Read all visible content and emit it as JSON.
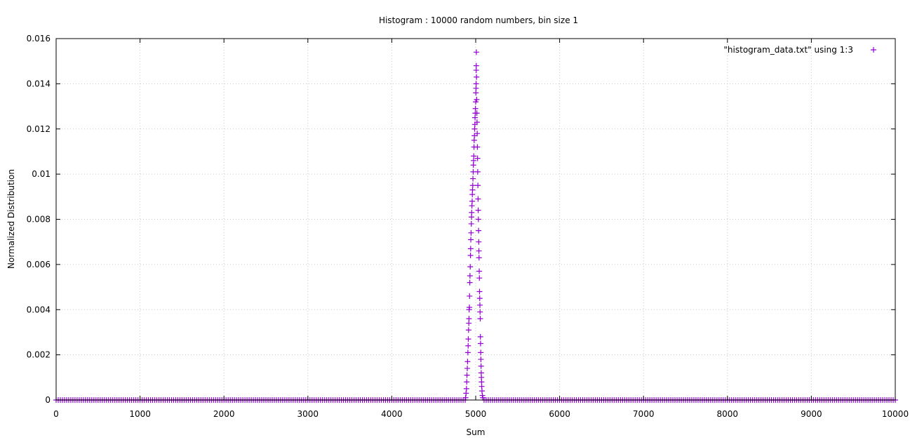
{
  "chart_data": {
    "type": "scatter",
    "title": "Histogram : 10000 random numbers, bin size 1",
    "xlabel": "Sum",
    "ylabel": "Normalized Distribution",
    "xlim": [
      0,
      10000
    ],
    "ylim": [
      0,
      0.016
    ],
    "x_ticks": [
      "0",
      "1000",
      "2000",
      "3000",
      "4000",
      "5000",
      "6000",
      "7000",
      "8000",
      "9000",
      "10000"
    ],
    "y_ticks": [
      "0",
      "0.002",
      "0.004",
      "0.006",
      "0.008",
      "0.01",
      "0.012",
      "0.014",
      "0.016"
    ],
    "grid": true,
    "legend_position": "top-right",
    "marker": "plus",
    "series": [
      {
        "name": "\"histogram_data.txt\" using 1:3",
        "color": "#9400d3",
        "baseline": {
          "x_range": [
            0,
            10000
          ],
          "step": 25,
          "y": 0
        },
        "points": [
          [
            4880,
            0.0001
          ],
          [
            4885,
            0.0003
          ],
          [
            4890,
            0.0005
          ],
          [
            4893,
            0.0008
          ],
          [
            4896,
            0.0011
          ],
          [
            4900,
            0.0014
          ],
          [
            4903,
            0.0017
          ],
          [
            4907,
            0.0021
          ],
          [
            4910,
            0.0024
          ],
          [
            4912,
            0.0027
          ],
          [
            4915,
            0.0031
          ],
          [
            4918,
            0.0034
          ],
          [
            4920,
            0.0036
          ],
          [
            4922,
            0.004
          ],
          [
            4925,
            0.0041
          ],
          [
            4927,
            0.0046
          ],
          [
            4930,
            0.0052
          ],
          [
            4932,
            0.0055
          ],
          [
            4935,
            0.0059
          ],
          [
            4938,
            0.0064
          ],
          [
            4940,
            0.0067
          ],
          [
            4942,
            0.0071
          ],
          [
            4945,
            0.0074
          ],
          [
            4948,
            0.0078
          ],
          [
            4950,
            0.0081
          ],
          [
            4952,
            0.0083
          ],
          [
            4955,
            0.0086
          ],
          [
            4958,
            0.0088
          ],
          [
            4960,
            0.0091
          ],
          [
            4962,
            0.0093
          ],
          [
            4965,
            0.0095
          ],
          [
            4967,
            0.0098
          ],
          [
            4970,
            0.0101
          ],
          [
            4972,
            0.0104
          ],
          [
            4975,
            0.0106
          ],
          [
            4977,
            0.0108
          ],
          [
            4980,
            0.0112
          ],
          [
            4982,
            0.0115
          ],
          [
            4985,
            0.0117
          ],
          [
            4987,
            0.012
          ],
          [
            4990,
            0.0122
          ],
          [
            4992,
            0.0125
          ],
          [
            4995,
            0.0127
          ],
          [
            4997,
            0.0129
          ],
          [
            5000,
            0.0132
          ],
          [
            5002,
            0.0136
          ],
          [
            5004,
            0.0138
          ],
          [
            5005,
            0.014
          ],
          [
            5006,
            0.0146
          ],
          [
            5007,
            0.0148
          ],
          [
            5008,
            0.0154
          ],
          [
            5010,
            0.0143
          ],
          [
            5012,
            0.0133
          ],
          [
            5014,
            0.0127
          ],
          [
            5016,
            0.0123
          ],
          [
            5018,
            0.0118
          ],
          [
            5020,
            0.0112
          ],
          [
            5022,
            0.0107
          ],
          [
            5024,
            0.0101
          ],
          [
            5026,
            0.0095
          ],
          [
            5028,
            0.0089
          ],
          [
            5030,
            0.0084
          ],
          [
            5032,
            0.008
          ],
          [
            5034,
            0.0075
          ],
          [
            5036,
            0.007
          ],
          [
            5038,
            0.0066
          ],
          [
            5040,
            0.0063
          ],
          [
            5042,
            0.0057
          ],
          [
            5044,
            0.0054
          ],
          [
            5046,
            0.0048
          ],
          [
            5048,
            0.0045
          ],
          [
            5050,
            0.0042
          ],
          [
            5052,
            0.0039
          ],
          [
            5054,
            0.0036
          ],
          [
            5056,
            0.0028
          ],
          [
            5058,
            0.0025
          ],
          [
            5060,
            0.0021
          ],
          [
            5062,
            0.0018
          ],
          [
            5064,
            0.0015
          ],
          [
            5066,
            0.0012
          ],
          [
            5068,
            0.001
          ],
          [
            5070,
            0.0008
          ],
          [
            5072,
            0.0006
          ],
          [
            5075,
            0.0004
          ],
          [
            5080,
            0.0002
          ],
          [
            5085,
            0.0001
          ]
        ]
      }
    ]
  }
}
